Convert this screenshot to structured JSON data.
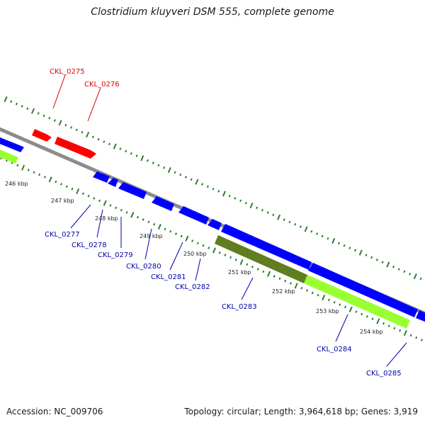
{
  "title": "Clostridium kluyveri DSM 555, complete genome",
  "footer": {
    "accession": "Accession: NC_009706",
    "summary": "Topology: circular; Length: 3,964,618 bp; Genes: 3,919"
  },
  "colors": {
    "forward_gene": "#ff0000",
    "reverse_gene": "#0000ff",
    "feature_bright": "#99ff33",
    "feature_dark": "#607d20",
    "backbone": "#8c8c8c",
    "tick": "#2e7d2e",
    "forward_label": "#dd0000",
    "reverse_label": "#0000aa"
  },
  "scale": {
    "tick_labels": [
      "246 kbp",
      "247 kbp",
      "248 kbp",
      "249 kbp",
      "250 kbp",
      "251 kbp",
      "252 kbp",
      "253 kbp",
      "254 kbp"
    ]
  },
  "genes": [
    {
      "label": "CKL_0275",
      "strand": "forward"
    },
    {
      "label": "CKL_0276",
      "strand": "forward"
    },
    {
      "label": "CKL_0277",
      "strand": "reverse"
    },
    {
      "label": "CKL_0278",
      "strand": "reverse"
    },
    {
      "label": "CKL_0279",
      "strand": "reverse"
    },
    {
      "label": "CKL_0280",
      "strand": "reverse"
    },
    {
      "label": "CKL_0281",
      "strand": "reverse"
    },
    {
      "label": "CKL_0282",
      "strand": "reverse"
    },
    {
      "label": "CKL_0283",
      "strand": "reverse"
    },
    {
      "label": "CKL_0284",
      "strand": "reverse"
    },
    {
      "label": "CKL_0285",
      "strand": "reverse"
    }
  ]
}
